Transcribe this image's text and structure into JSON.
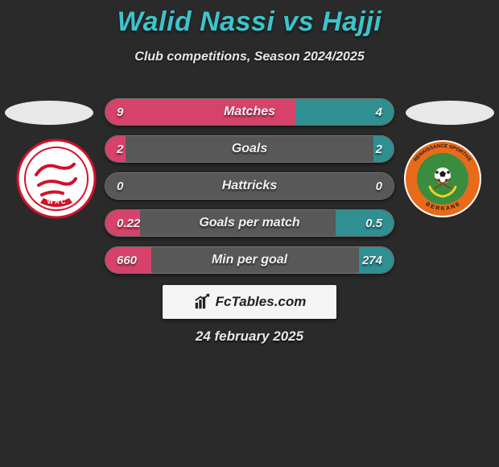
{
  "title": "Walid Nassi vs Hajji",
  "subtitle": "Club competitions, Season 2024/2025",
  "date": "24 february 2025",
  "logo_text": "FcTables.com",
  "colors": {
    "background": "#2a2a2a",
    "title": "#3cc4cc",
    "text": "#e8e8e8",
    "left_fill": "#d7426a",
    "right_fill": "#2f8f91",
    "mid_fill": "#585858",
    "ellipse": "#e8e8e8",
    "logo_box": "#f5f5f5"
  },
  "bars": [
    {
      "label": "Matches",
      "left_val": "9",
      "right_val": "4",
      "left_pct": 66,
      "right_pct": 34,
      "mid_pct": 0
    },
    {
      "label": "Goals",
      "left_val": "2",
      "right_val": "2",
      "left_pct": 7,
      "right_pct": 7,
      "mid_pct": 86
    },
    {
      "label": "Hattricks",
      "left_val": "0",
      "right_val": "0",
      "left_pct": 0,
      "right_pct": 0,
      "mid_pct": 100
    },
    {
      "label": "Goals per match",
      "left_val": "0.22",
      "right_val": "0.5",
      "left_pct": 12,
      "right_pct": 20,
      "mid_pct": 68
    },
    {
      "label": "Min per goal",
      "left_val": "660",
      "right_val": "274",
      "left_pct": 16,
      "right_pct": 12,
      "mid_pct": 72
    }
  ],
  "club_left": {
    "name": "Wydad AC",
    "bg": "#ffffff",
    "primary": "#d4102a"
  },
  "club_right": {
    "name": "Renaissance Sportive Berkane",
    "bg": "#ffffff",
    "ring": "#e96b1a",
    "inner_bg": "#3a8d3f",
    "ring_text": "RENAISSANCE SPORTIVE • BERKANE"
  }
}
